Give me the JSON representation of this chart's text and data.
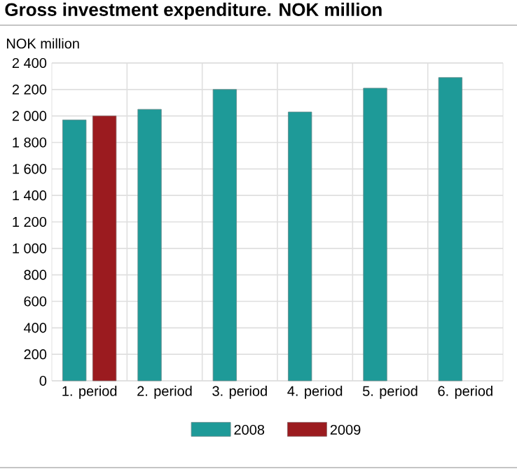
{
  "chart_data": {
    "type": "bar",
    "title": "Gross investment expenditure. NOK million",
    "ylabel": "NOK million",
    "categories": [
      "1. period",
      "2. period",
      "3. period",
      "4. period",
      "5. period",
      "6. period"
    ],
    "series": [
      {
        "name": "2008",
        "color": "#1e9a98",
        "values": [
          1970,
          2050,
          2200,
          2030,
          2210,
          2290
        ]
      },
      {
        "name": "2009",
        "color": "#9b1b1f",
        "values": [
          2000,
          null,
          null,
          null,
          null,
          null
        ]
      }
    ],
    "ylim": [
      0,
      2400
    ],
    "yticks": [
      {
        "value": 0,
        "label": "0"
      },
      {
        "value": 200,
        "label": "200"
      },
      {
        "value": 400,
        "label": "400"
      },
      {
        "value": 600,
        "label": "600"
      },
      {
        "value": 800,
        "label": "800"
      },
      {
        "value": 1000,
        "label": "1 000"
      },
      {
        "value": 1200,
        "label": "1 200"
      },
      {
        "value": 1400,
        "label": "1 400"
      },
      {
        "value": 1600,
        "label": "1 600"
      },
      {
        "value": 1800,
        "label": "1 800"
      },
      {
        "value": 2000,
        "label": "2 000"
      },
      {
        "value": 2200,
        "label": "2 200"
      },
      {
        "value": 2400,
        "label": "2 400"
      }
    ],
    "grid": true,
    "legend": "bottom"
  }
}
